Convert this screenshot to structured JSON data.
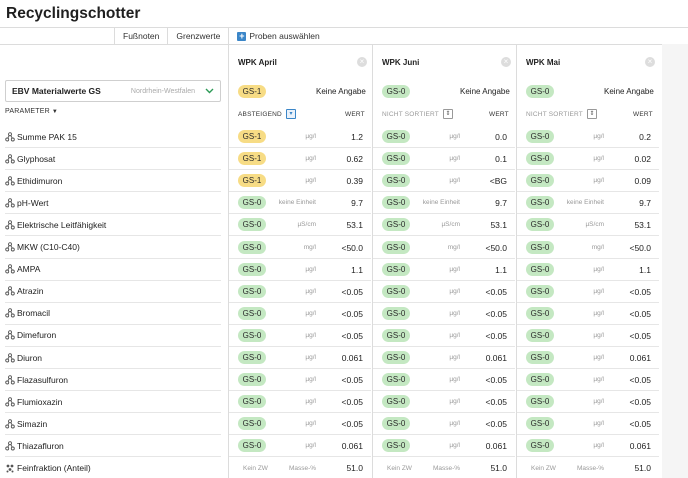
{
  "page_title": "Recyclingschotter",
  "toolbar": {
    "footnotes": "Fußnoten",
    "limits": "Grenzwerte",
    "select_samples": "Proben auswählen"
  },
  "ebv": {
    "label": "EBV Materialwerte GS",
    "region": "Nordrhein-Westfalen"
  },
  "param_header": "PARAMETER",
  "parameters": [
    "Summe PAK 15",
    "Glyphosat",
    "Ethidimuron",
    "pH-Wert",
    "Elektrische Leitfähigkeit",
    "MKW (C10-C40)",
    "AMPA",
    "Atrazin",
    "Bromacil",
    "Dimefuron",
    "Diuron",
    "Flazasulfuron",
    "Flumioxazin",
    "Simazin",
    "Thiazafluron",
    "Feinfraktion (Anteil)"
  ],
  "columns": [
    {
      "name": "WPK April",
      "class": "GS-1",
      "note": "Keine Angabe",
      "sort": "ABSTEIGEND",
      "sort_active": true,
      "wert": "WERT",
      "rows": [
        {
          "cls": "GS-1",
          "unit": "µg/l",
          "val": "1.2"
        },
        {
          "cls": "GS-1",
          "unit": "µg/l",
          "val": "0.62"
        },
        {
          "cls": "GS-1",
          "unit": "µg/l",
          "val": "0.39"
        },
        {
          "cls": "GS-0",
          "unit": "keine Einheit",
          "val": "9.7"
        },
        {
          "cls": "GS-0",
          "unit": "µS/cm",
          "val": "53.1"
        },
        {
          "cls": "GS-0",
          "unit": "mg/l",
          "val": "<50.0"
        },
        {
          "cls": "GS-0",
          "unit": "µg/l",
          "val": "1.1"
        },
        {
          "cls": "GS-0",
          "unit": "µg/l",
          "val": "<0.05"
        },
        {
          "cls": "GS-0",
          "unit": "µg/l",
          "val": "<0.05"
        },
        {
          "cls": "GS-0",
          "unit": "µg/l",
          "val": "<0.05"
        },
        {
          "cls": "GS-0",
          "unit": "µg/l",
          "val": "0.061"
        },
        {
          "cls": "GS-0",
          "unit": "µg/l",
          "val": "<0.05"
        },
        {
          "cls": "GS-0",
          "unit": "µg/l",
          "val": "<0.05"
        },
        {
          "cls": "GS-0",
          "unit": "µg/l",
          "val": "<0.05"
        },
        {
          "cls": "GS-0",
          "unit": "µg/l",
          "val": "0.061"
        }
      ],
      "foot": {
        "zw": "Kein ZW",
        "unit": "Masse-%",
        "val": "51.0"
      }
    },
    {
      "name": "WPK Juni",
      "class": "GS-0",
      "note": "Keine Angabe",
      "sort": "NICHT SORTIERT",
      "sort_active": false,
      "wert": "WERT",
      "rows": [
        {
          "cls": "GS-0",
          "unit": "µg/l",
          "val": "0.0"
        },
        {
          "cls": "GS-0",
          "unit": "µg/l",
          "val": "0.1"
        },
        {
          "cls": "GS-0",
          "unit": "µg/l",
          "val": "<BG"
        },
        {
          "cls": "GS-0",
          "unit": "keine Einheit",
          "val": "9.7"
        },
        {
          "cls": "GS-0",
          "unit": "µS/cm",
          "val": "53.1"
        },
        {
          "cls": "GS-0",
          "unit": "mg/l",
          "val": "<50.0"
        },
        {
          "cls": "GS-0",
          "unit": "µg/l",
          "val": "1.1"
        },
        {
          "cls": "GS-0",
          "unit": "µg/l",
          "val": "<0.05"
        },
        {
          "cls": "GS-0",
          "unit": "µg/l",
          "val": "<0.05"
        },
        {
          "cls": "GS-0",
          "unit": "µg/l",
          "val": "<0.05"
        },
        {
          "cls": "GS-0",
          "unit": "µg/l",
          "val": "0.061"
        },
        {
          "cls": "GS-0",
          "unit": "µg/l",
          "val": "<0.05"
        },
        {
          "cls": "GS-0",
          "unit": "µg/l",
          "val": "<0.05"
        },
        {
          "cls": "GS-0",
          "unit": "µg/l",
          "val": "<0.05"
        },
        {
          "cls": "GS-0",
          "unit": "µg/l",
          "val": "0.061"
        }
      ],
      "foot": {
        "zw": "Kein ZW",
        "unit": "Masse-%",
        "val": "51.0"
      }
    },
    {
      "name": "WPK Mai",
      "class": "GS-0",
      "note": "Keine Angabe",
      "sort": "NICHT SORTIERT",
      "sort_active": false,
      "wert": "WERT",
      "rows": [
        {
          "cls": "GS-0",
          "unit": "µg/l",
          "val": "0.2"
        },
        {
          "cls": "GS-0",
          "unit": "µg/l",
          "val": "0.02"
        },
        {
          "cls": "GS-0",
          "unit": "µg/l",
          "val": "0.09"
        },
        {
          "cls": "GS-0",
          "unit": "keine Einheit",
          "val": "9.7"
        },
        {
          "cls": "GS-0",
          "unit": "µS/cm",
          "val": "53.1"
        },
        {
          "cls": "GS-0",
          "unit": "mg/l",
          "val": "<50.0"
        },
        {
          "cls": "GS-0",
          "unit": "µg/l",
          "val": "1.1"
        },
        {
          "cls": "GS-0",
          "unit": "µg/l",
          "val": "<0.05"
        },
        {
          "cls": "GS-0",
          "unit": "µg/l",
          "val": "<0.05"
        },
        {
          "cls": "GS-0",
          "unit": "µg/l",
          "val": "<0.05"
        },
        {
          "cls": "GS-0",
          "unit": "µg/l",
          "val": "0.061"
        },
        {
          "cls": "GS-0",
          "unit": "µg/l",
          "val": "<0.05"
        },
        {
          "cls": "GS-0",
          "unit": "µg/l",
          "val": "<0.05"
        },
        {
          "cls": "GS-0",
          "unit": "µg/l",
          "val": "<0.05"
        },
        {
          "cls": "GS-0",
          "unit": "µg/l",
          "val": "0.061"
        }
      ],
      "foot": {
        "zw": "Kein ZW",
        "unit": "Masse-%",
        "val": "51.0"
      }
    }
  ],
  "colors": {
    "gs1": "#f7dc85",
    "gs0": "#c4e8c2",
    "accent": "#3b86c8",
    "green": "#2c9a56"
  }
}
